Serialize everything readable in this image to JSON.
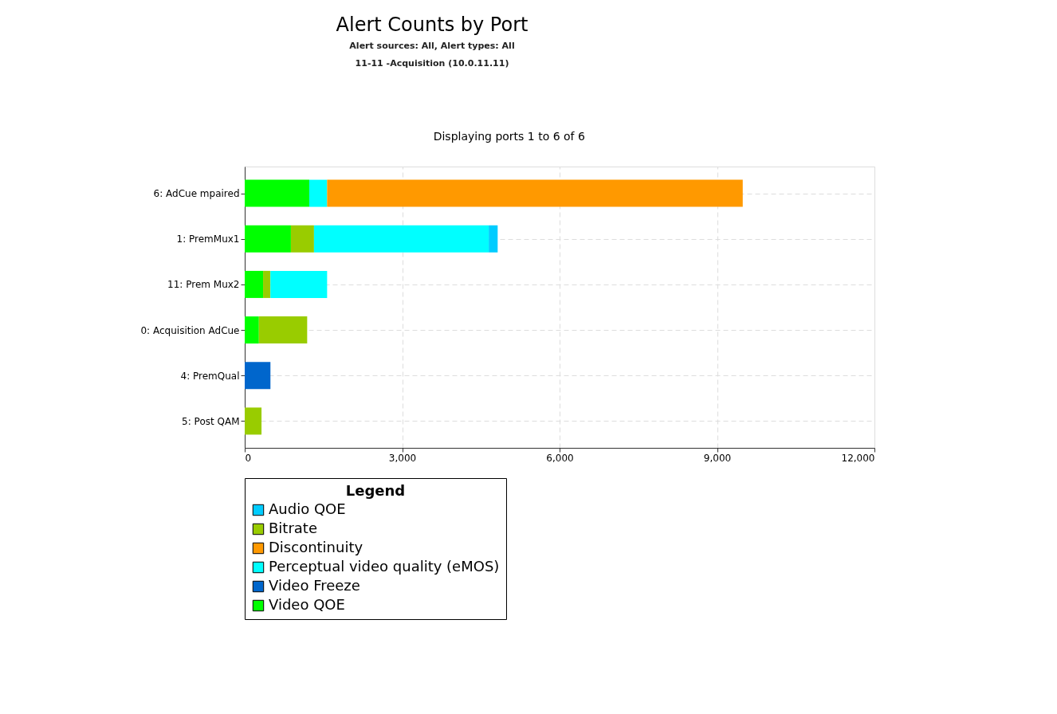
{
  "chart_data": {
    "type": "bar",
    "orientation": "horizontal",
    "stacked": true,
    "title": "Alert Counts by Port",
    "subtitle": "Alert sources: All, Alert types: All\n11-11 -Acquisition (10.0.11.11)",
    "annotations": [
      "Displaying ports 1 to 6 of 6"
    ],
    "legend_title": "Legend",
    "categories": [
      "6: AdCue mpaired",
      "1: PremMux1",
      "11: Prem Mux2",
      "0: Acquisition AdCue",
      "4: PremQual",
      "5: Post QAM"
    ],
    "series": [
      {
        "name": "Video QOE",
        "color": "#00ff00",
        "values": [
          1230,
          880,
          350,
          270,
          null,
          null
        ]
      },
      {
        "name": "Video Freeze",
        "color": "#0066cc",
        "values": [
          null,
          null,
          null,
          null,
          490,
          null
        ]
      },
      {
        "name": "Bitrate",
        "color": "#99cc00",
        "values": [
          null,
          440,
          140,
          920,
          null,
          320
        ]
      },
      {
        "name": "Perceptual video quality (eMOS)",
        "color": "#00ffff",
        "values": [
          340,
          3330,
          1080,
          null,
          null,
          null
        ]
      },
      {
        "name": "Audio QOE",
        "color": "#00ccff",
        "values": [
          null,
          170,
          null,
          null,
          null,
          null
        ]
      },
      {
        "name": "Discontinuity",
        "color": "#ff9900",
        "values": [
          7920,
          null,
          null,
          null,
          null,
          null
        ]
      }
    ],
    "xlim": [
      0,
      12000
    ],
    "xticks": [
      0,
      {
        "value": 3000,
        "label": "3,000"
      },
      {
        "value": 6000,
        "label": "6,000"
      },
      {
        "value": 9000,
        "label": "9,000"
      },
      {
        "value": 12000,
        "label": "12,000"
      }
    ],
    "grid": true,
    "legend": "bottom"
  }
}
